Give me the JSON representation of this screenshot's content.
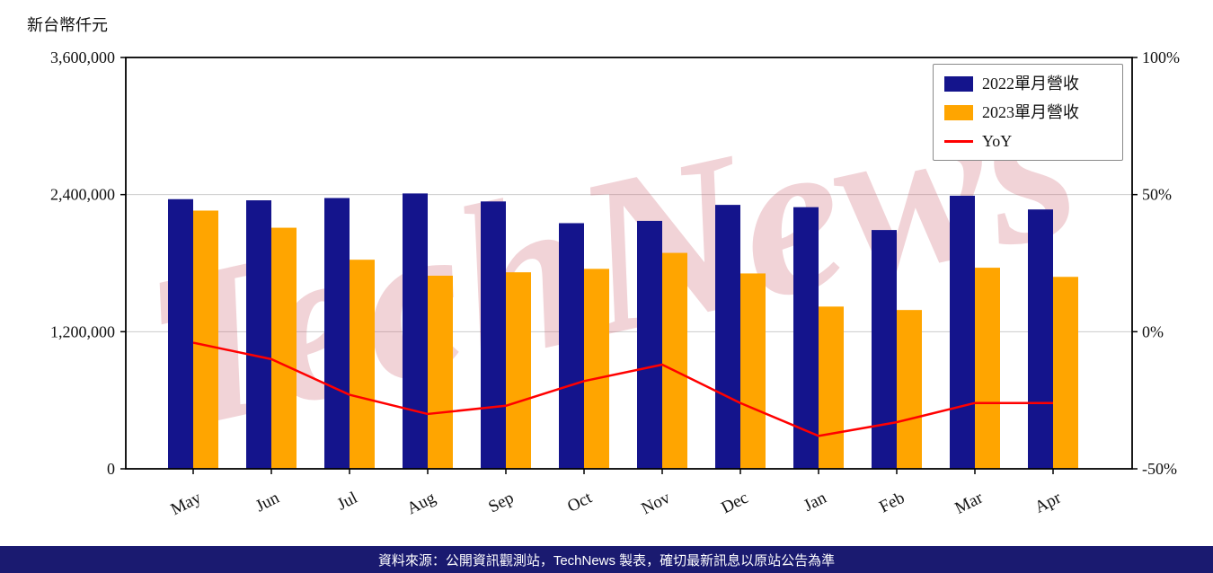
{
  "unit_label": "新台幣仟元",
  "watermark": {
    "text": "TechNews",
    "color": "#C85060"
  },
  "footer": {
    "source_text": "資料來源：公開資訊觀測站，TechNews 製表，確切最新訊息以原站公告為準",
    "bg_color": "#1A1A70"
  },
  "legend": {
    "entries": [
      {
        "label": "2022單月營收",
        "type": "box"
      },
      {
        "label": "2023單月營收",
        "type": "box"
      },
      {
        "label": "YoY",
        "type": "line"
      }
    ]
  },
  "chart_data": {
    "type": "bar",
    "title": "",
    "categories": [
      "May",
      "Jun",
      "Jul",
      "Aug",
      "Sep",
      "Oct",
      "Nov",
      "Dec",
      "Jan",
      "Feb",
      "Mar",
      "Apr"
    ],
    "series": [
      {
        "name": "2022單月營收",
        "type": "bar",
        "axis": "left",
        "color": "#14148C",
        "values": [
          2360000,
          2350000,
          2370000,
          2410000,
          2340000,
          2150000,
          2170000,
          2310000,
          2290000,
          2090000,
          2390000,
          2270000
        ]
      },
      {
        "name": "2023單月營收",
        "type": "bar",
        "axis": "left",
        "color": "#FFA500",
        "values": [
          2260000,
          2110000,
          1830000,
          1690000,
          1720000,
          1750000,
          1890000,
          1710000,
          1420000,
          1390000,
          1760000,
          1680000
        ]
      },
      {
        "name": "YoY",
        "type": "line",
        "axis": "right",
        "color": "#FF0000",
        "values": [
          -4,
          -10,
          -23,
          -30,
          -27,
          -18,
          -12,
          -26,
          -38,
          -33,
          -26,
          -26
        ]
      }
    ],
    "left_axis": {
      "unit": "新台幣仟元",
      "lim": [
        0,
        3600000
      ],
      "ticks": [
        0,
        1200000,
        2400000,
        3600000
      ]
    },
    "right_axis": {
      "unit": "%",
      "lim": [
        -50,
        100
      ],
      "ticks": [
        -50,
        0,
        50,
        100
      ]
    },
    "grid": true,
    "legend_position": "upper right"
  }
}
